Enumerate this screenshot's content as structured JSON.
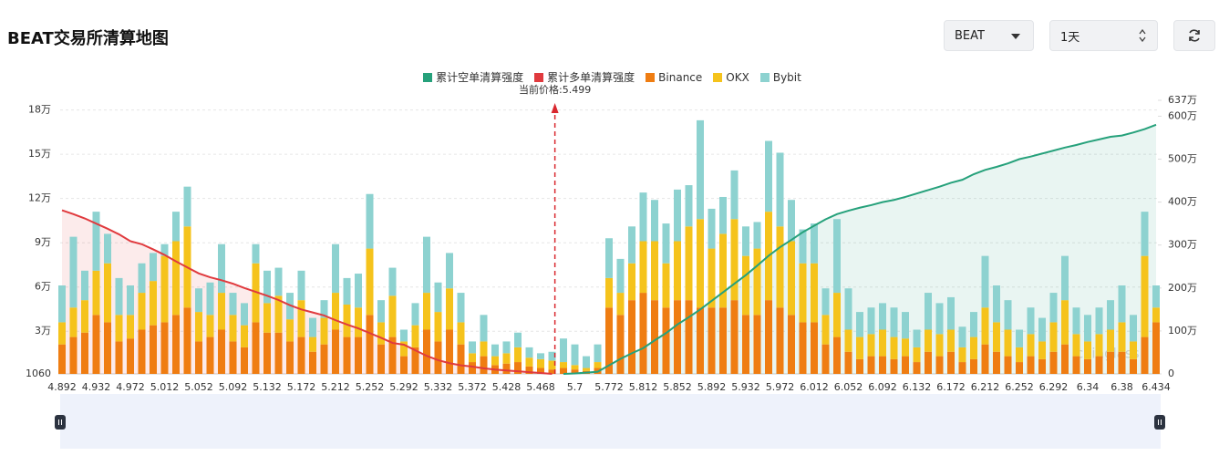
{
  "header": {
    "title": "BEAT交易所清算地图",
    "symbol": "BEAT",
    "period": "1天"
  },
  "chart_data": {
    "type": "bar",
    "stacked": true,
    "annotation": "当前价格:5.499",
    "watermark": "coinglass",
    "categories": [
      "4.892",
      null,
      null,
      "4.932",
      null,
      null,
      "4.972",
      null,
      null,
      "5.012",
      null,
      null,
      "5.052",
      null,
      null,
      "5.092",
      null,
      null,
      "5.132",
      null,
      null,
      "5.172",
      null,
      null,
      "5.212",
      null,
      null,
      "5.252",
      null,
      null,
      "5.292",
      null,
      null,
      "5.332",
      null,
      null,
      "5.372",
      null,
      null,
      "5.428",
      null,
      null,
      "5.468",
      null,
      null,
      "5.7",
      null,
      null,
      "5.772",
      null,
      null,
      "5.812",
      null,
      null,
      "5.852",
      null,
      null,
      "5.892",
      null,
      null,
      "5.932",
      null,
      null,
      "5.972",
      null,
      null,
      "6.012",
      null,
      null,
      "6.052",
      null,
      null,
      "6.092",
      null,
      null,
      "6.132",
      null,
      null,
      "6.172",
      null,
      null,
      "6.212",
      null,
      null,
      "6.252",
      null,
      null,
      "6.292",
      null,
      null,
      "6.34",
      null,
      null,
      "6.38",
      null,
      null,
      "6.434"
    ],
    "series": [
      {
        "name": "累计空单清算强度",
        "type": "line",
        "axis": "y2",
        "color": "#26a17b",
        "values": [
          null,
          null,
          null,
          null,
          null,
          null,
          null,
          null,
          null,
          null,
          null,
          null,
          null,
          null,
          null,
          null,
          null,
          null,
          null,
          null,
          null,
          null,
          null,
          null,
          null,
          null,
          null,
          null,
          null,
          null,
          null,
          null,
          null,
          null,
          null,
          null,
          null,
          null,
          null,
          null,
          null,
          null,
          null,
          null,
          0,
          10000,
          30000,
          50000,
          200000,
          350000,
          480000,
          600000,
          780000,
          950000,
          1150000,
          1320000,
          1500000,
          1700000,
          1900000,
          2100000,
          2300000,
          2520000,
          2750000,
          2950000,
          3120000,
          3300000,
          3450000,
          3600000,
          3720000,
          3800000,
          3870000,
          3930000,
          4000000,
          4050000,
          4120000,
          4200000,
          4280000,
          4360000,
          4450000,
          4520000,
          4650000,
          4750000,
          4820000,
          4900000,
          5000000,
          5060000,
          5130000,
          5200000,
          5270000,
          5330000,
          5400000,
          5460000,
          5520000,
          5550000,
          5620000,
          5700000,
          5800000
        ]
      },
      {
        "name": "累计多单清算强度",
        "type": "line",
        "axis": "y2",
        "color": "#e03a3e",
        "values": [
          3810000,
          3720000,
          3620000,
          3500000,
          3380000,
          3250000,
          3090000,
          3020000,
          2900000,
          2770000,
          2620000,
          2480000,
          2340000,
          2250000,
          2180000,
          2100000,
          2000000,
          1910000,
          1820000,
          1720000,
          1600000,
          1500000,
          1430000,
          1360000,
          1250000,
          1150000,
          1060000,
          950000,
          840000,
          720000,
          680000,
          550000,
          420000,
          320000,
          250000,
          200000,
          170000,
          130000,
          100000,
          80000,
          60000,
          40000,
          20000,
          0,
          null,
          null,
          null,
          null,
          null,
          null,
          null,
          null,
          null,
          null,
          null,
          null,
          null,
          null,
          null,
          null,
          null,
          null,
          null,
          null,
          null,
          null,
          null,
          null,
          null,
          null,
          null,
          null,
          null,
          null,
          null,
          null,
          null,
          null,
          null,
          null,
          null,
          null,
          null,
          null,
          null,
          null,
          null,
          null,
          null,
          null,
          null,
          null,
          null,
          null,
          null,
          null,
          null
        ]
      },
      {
        "name": "Binance",
        "type": "bar",
        "color": "#ef7d12",
        "values": [
          20000,
          25000,
          28000,
          40000,
          35000,
          22000,
          24000,
          30000,
          33000,
          35000,
          40000,
          45000,
          22000,
          25000,
          30000,
          22000,
          18000,
          35000,
          28000,
          28000,
          22000,
          25000,
          15000,
          20000,
          30000,
          25000,
          25000,
          40000,
          20000,
          25000,
          12000,
          18000,
          30000,
          22000,
          30000,
          20000,
          8000,
          12000,
          6000,
          7000,
          8000,
          5000,
          4000,
          3000,
          4000,
          3000,
          2000,
          4000,
          45000,
          40000,
          50000,
          55000,
          50000,
          45000,
          50000,
          50000,
          45000,
          45000,
          45000,
          50000,
          40000,
          40000,
          50000,
          45000,
          40000,
          35000,
          35000,
          20000,
          25000,
          15000,
          10000,
          12000,
          12000,
          10000,
          12000,
          8000,
          15000,
          12000,
          15000,
          8000,
          10000,
          20000,
          15000,
          12000,
          8000,
          12000,
          10000,
          15000,
          20000,
          12000,
          10000,
          12000,
          15000,
          15000,
          10000,
          25000,
          35000
        ]
      },
      {
        "name": "OKX",
        "type": "bar",
        "color": "#f5c31c",
        "values": [
          15000,
          20000,
          22000,
          30000,
          40000,
          18000,
          16000,
          25000,
          30000,
          45000,
          50000,
          55000,
          20000,
          15000,
          25000,
          18000,
          15000,
          40000,
          20000,
          25000,
          15000,
          25000,
          10000,
          18000,
          25000,
          22000,
          20000,
          45000,
          15000,
          28000,
          10000,
          15000,
          25000,
          20000,
          28000,
          15000,
          6000,
          10000,
          6000,
          7000,
          10000,
          6000,
          6000,
          6000,
          4000,
          3000,
          2000,
          4000,
          20000,
          15000,
          25000,
          35000,
          40000,
          30000,
          40000,
          50000,
          60000,
          40000,
          50000,
          55000,
          40000,
          45000,
          60000,
          55000,
          50000,
          40000,
          40000,
          20000,
          30000,
          15000,
          15000,
          15000,
          18000,
          15000,
          12000,
          10000,
          15000,
          15000,
          15000,
          10000,
          15000,
          25000,
          20000,
          18000,
          10000,
          15000,
          12000,
          20000,
          30000,
          15000,
          12000,
          15000,
          15000,
          20000,
          12000,
          55000,
          10000
        ]
      },
      {
        "name": "Bybit",
        "type": "bar",
        "color": "#8dd2d0",
        "values": [
          25000,
          48000,
          20000,
          40000,
          20000,
          25000,
          20000,
          20000,
          19000,
          8000,
          20000,
          27000,
          16000,
          22000,
          33000,
          15000,
          15000,
          13000,
          22000,
          19000,
          18000,
          20000,
          13000,
          12000,
          33000,
          18000,
          23000,
          37000,
          15000,
          19000,
          8000,
          15000,
          38000,
          20000,
          24000,
          20000,
          8000,
          18000,
          8000,
          8000,
          10000,
          7000,
          4000,
          6000,
          16000,
          14000,
          8000,
          12000,
          27000,
          23000,
          25000,
          33000,
          28000,
          27000,
          35000,
          28000,
          67000,
          27000,
          25000,
          33000,
          20000,
          18000,
          48000,
          50000,
          28000,
          23000,
          27000,
          18000,
          50000,
          28000,
          17000,
          18000,
          18000,
          20000,
          18000,
          12000,
          25000,
          21000,
          22000,
          14000,
          17000,
          35000,
          25000,
          20000,
          12000,
          18000,
          16000,
          20000,
          30000,
          18000,
          18000,
          18000,
          20000,
          25000,
          18000,
          30000,
          15000
        ]
      }
    ],
    "ylim": [
      1060,
      186600
    ],
    "yticks": [
      1060,
      {
        "value": 30000,
        "label": "3万"
      },
      {
        "value": 60000,
        "label": "6万"
      },
      {
        "value": 90000,
        "label": "9万"
      },
      {
        "value": 120000,
        "label": "12万"
      },
      {
        "value": 150000,
        "label": "15万"
      },
      {
        "value": 180000,
        "label": "18万"
      }
    ],
    "y2lim": [
      0,
      6370000
    ],
    "y2ticks": [
      0,
      {
        "value": 1000000,
        "label": "100万"
      },
      {
        "value": 2000000,
        "label": "200万"
      },
      {
        "value": 3000000,
        "label": "300万"
      },
      {
        "value": 4000000,
        "label": "400万"
      },
      {
        "value": 5000000,
        "label": "500万"
      },
      {
        "value": 6000000,
        "label": "600万"
      },
      {
        "value": 6370000,
        "label": "637万"
      }
    ],
    "grid": true
  }
}
